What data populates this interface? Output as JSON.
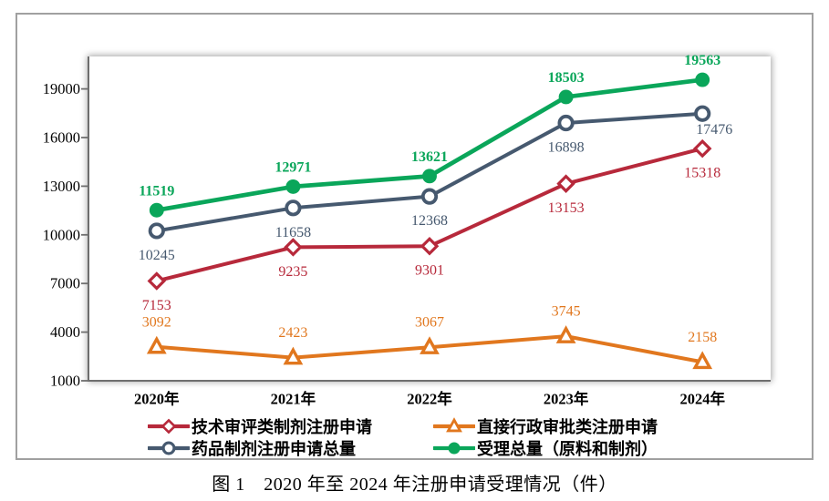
{
  "chart_data": {
    "type": "line",
    "caption": "图 1　2020 年至 2024 年注册申请受理情况（件）",
    "categories": [
      "2020年",
      "2021年",
      "2022年",
      "2023年",
      "2024年"
    ],
    "series": [
      {
        "name": "技术审评类制剂注册申请",
        "color": "#b7293b",
        "marker": "hollow-diamond",
        "values": [
          7153,
          9235,
          9301,
          13153,
          15318
        ],
        "data_label_position": "below",
        "data_label_bold": false
      },
      {
        "name": "直接行政审批类注册申请",
        "color": "#e1771e",
        "marker": "hollow-triangle",
        "values": [
          3092,
          2423,
          3067,
          3745,
          2158
        ],
        "data_label_position": "above",
        "data_label_bold": false
      },
      {
        "name": "药品制剂注册申请总量",
        "color": "#46596f",
        "marker": "hollow-circle",
        "values": [
          10245,
          11658,
          12368,
          16898,
          17476
        ],
        "data_label_position": "below",
        "data_label_bold": false
      },
      {
        "name": "受理总量（原料和制剂）",
        "color": "#0aa65a",
        "marker": "filled-circle",
        "values": [
          11519,
          12971,
          13621,
          18503,
          19563
        ],
        "data_label_position": "above",
        "data_label_bold": true
      }
    ],
    "y_ticks": [
      1000,
      4000,
      7000,
      10000,
      13000,
      16000,
      19000
    ],
    "ylim": [
      1000,
      21000
    ],
    "grid": false,
    "legend_position": "bottom",
    "legend_columns": 2,
    "axis_color": "#6e6e6e"
  }
}
